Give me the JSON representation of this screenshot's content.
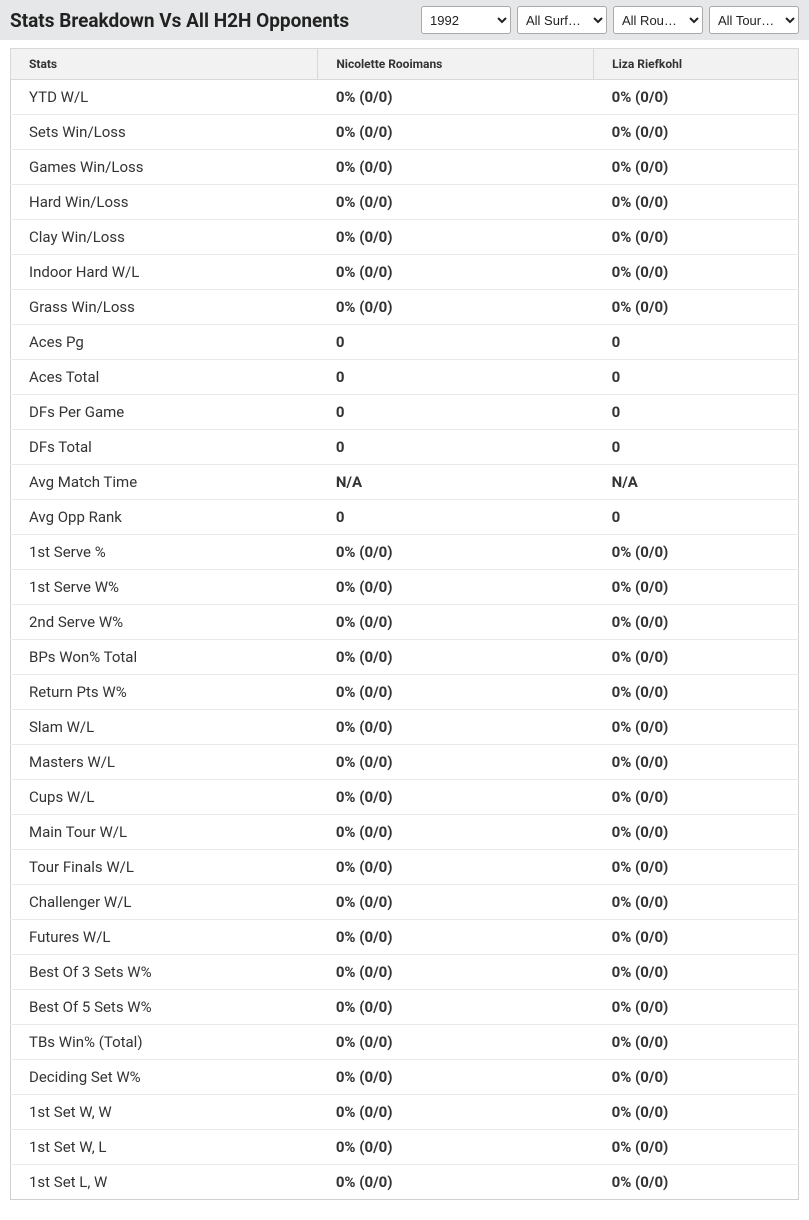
{
  "header": {
    "title": "Stats Breakdown Vs All H2H Opponents"
  },
  "filters": {
    "year": {
      "selected": "1992",
      "options": [
        "1992"
      ]
    },
    "surface": {
      "selected": "All Surf…",
      "options": [
        "All Surf…"
      ]
    },
    "round": {
      "selected": "All Rou…",
      "options": [
        "All Rou…"
      ]
    },
    "tour": {
      "selected": "All Tour…",
      "options": [
        "All Tour…"
      ]
    }
  },
  "table": {
    "columns": [
      "Stats",
      "Nicolette Rooimans",
      "Liza Riefkohl"
    ],
    "rows": [
      {
        "stat": "YTD W/L",
        "p1": "0% (0/0)",
        "p2": "0% (0/0)"
      },
      {
        "stat": "Sets Win/Loss",
        "p1": "0% (0/0)",
        "p2": "0% (0/0)"
      },
      {
        "stat": "Games Win/Loss",
        "p1": "0% (0/0)",
        "p2": "0% (0/0)"
      },
      {
        "stat": "Hard Win/Loss",
        "p1": "0% (0/0)",
        "p2": "0% (0/0)"
      },
      {
        "stat": "Clay Win/Loss",
        "p1": "0% (0/0)",
        "p2": "0% (0/0)"
      },
      {
        "stat": "Indoor Hard W/L",
        "p1": "0% (0/0)",
        "p2": "0% (0/0)"
      },
      {
        "stat": "Grass Win/Loss",
        "p1": "0% (0/0)",
        "p2": "0% (0/0)"
      },
      {
        "stat": "Aces Pg",
        "p1": "0",
        "p2": "0"
      },
      {
        "stat": "Aces Total",
        "p1": "0",
        "p2": "0"
      },
      {
        "stat": "DFs Per Game",
        "p1": "0",
        "p2": "0"
      },
      {
        "stat": "DFs Total",
        "p1": "0",
        "p2": "0"
      },
      {
        "stat": "Avg Match Time",
        "p1": "N/A",
        "p2": "N/A"
      },
      {
        "stat": "Avg Opp Rank",
        "p1": "0",
        "p2": "0"
      },
      {
        "stat": "1st Serve %",
        "p1": "0% (0/0)",
        "p2": "0% (0/0)"
      },
      {
        "stat": "1st Serve W%",
        "p1": "0% (0/0)",
        "p2": "0% (0/0)"
      },
      {
        "stat": "2nd Serve W%",
        "p1": "0% (0/0)",
        "p2": "0% (0/0)"
      },
      {
        "stat": "BPs Won% Total",
        "p1": "0% (0/0)",
        "p2": "0% (0/0)"
      },
      {
        "stat": "Return Pts W%",
        "p1": "0% (0/0)",
        "p2": "0% (0/0)"
      },
      {
        "stat": "Slam W/L",
        "p1": "0% (0/0)",
        "p2": "0% (0/0)"
      },
      {
        "stat": "Masters W/L",
        "p1": "0% (0/0)",
        "p2": "0% (0/0)"
      },
      {
        "stat": "Cups W/L",
        "p1": "0% (0/0)",
        "p2": "0% (0/0)"
      },
      {
        "stat": "Main Tour W/L",
        "p1": "0% (0/0)",
        "p2": "0% (0/0)"
      },
      {
        "stat": "Tour Finals W/L",
        "p1": "0% (0/0)",
        "p2": "0% (0/0)"
      },
      {
        "stat": "Challenger W/L",
        "p1": "0% (0/0)",
        "p2": "0% (0/0)"
      },
      {
        "stat": "Futures W/L",
        "p1": "0% (0/0)",
        "p2": "0% (0/0)"
      },
      {
        "stat": "Best Of 3 Sets W%",
        "p1": "0% (0/0)",
        "p2": "0% (0/0)"
      },
      {
        "stat": "Best Of 5 Sets W%",
        "p1": "0% (0/0)",
        "p2": "0% (0/0)"
      },
      {
        "stat": "TBs Win% (Total)",
        "p1": "0% (0/0)",
        "p2": "0% (0/0)"
      },
      {
        "stat": "Deciding Set W%",
        "p1": "0% (0/0)",
        "p2": "0% (0/0)"
      },
      {
        "stat": "1st Set W, W",
        "p1": "0% (0/0)",
        "p2": "0% (0/0)"
      },
      {
        "stat": "1st Set W, L",
        "p1": "0% (0/0)",
        "p2": "0% (0/0)"
      },
      {
        "stat": "1st Set L, W",
        "p1": "0% (0/0)",
        "p2": "0% (0/0)"
      }
    ]
  },
  "style": {
    "header_bg": "#e6e7e8",
    "thead_bg": "#f2f2f2",
    "border_color": "#d0d0d0",
    "row_border": "#eaeaea",
    "text_color": "#333333",
    "title_color": "#222222",
    "title_fontsize": 19,
    "body_fontsize": 15,
    "header_fontsize": 12
  }
}
